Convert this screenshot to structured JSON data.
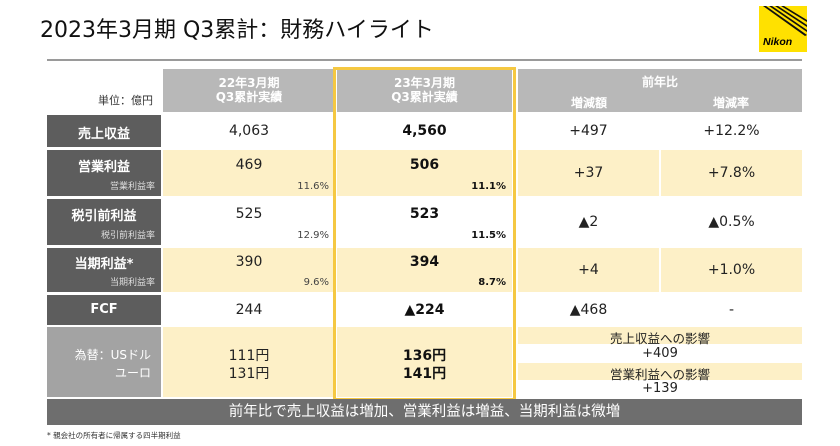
{
  "title": "2023年3月期 Q3累計：財務ハイライト",
  "logo": {
    "text": "Nikon",
    "color": "#ffe100"
  },
  "header": {
    "unit_label": "単位：億円",
    "prev_year": "22年3月期",
    "prev_sub": "Q3累計実績",
    "cur_year": "23年3月期",
    "cur_sub": "Q3累計実績",
    "yoy": "前年比",
    "diff": "増減額",
    "rate": "増減率"
  },
  "rows": [
    {
      "label": "売上収益",
      "prev": "4,063",
      "cur": "4,560",
      "diff": "+497",
      "rate": "+12.2%"
    },
    {
      "label": "営業利益",
      "sub": "営業利益率",
      "prev": "469",
      "prev_pct": "11.6%",
      "cur": "506",
      "cur_pct": "11.1%",
      "diff": "+37",
      "rate": "+7.8%"
    },
    {
      "label": "税引前利益",
      "sub": "税引前利益率",
      "prev": "525",
      "prev_pct": "12.9%",
      "cur": "523",
      "cur_pct": "11.5%",
      "diff": "▲2",
      "rate": "▲0.5%"
    },
    {
      "label": "当期利益*",
      "sub": "当期利益率",
      "prev": "390",
      "prev_pct": "9.6%",
      "cur": "394",
      "cur_pct": "8.7%",
      "diff": "+4",
      "rate": "+1.0%"
    },
    {
      "label": "FCF",
      "prev": "244",
      "cur": "▲224",
      "diff": "▲468",
      "rate": "-"
    }
  ],
  "fx": {
    "label1": "為替：USドル",
    "label2": "ユーロ",
    "prev_usd": "111円",
    "prev_eur": "131円",
    "cur_usd": "136円",
    "cur_eur": "141円",
    "impact_sales_label": "売上収益への影響",
    "impact_sales": "+409",
    "impact_op_label": "営業利益への影響",
    "impact_op": "+139"
  },
  "banner": "前年比で売上収益は増加、営業利益は増益、当期利益は微増",
  "footnote": "* 親会社の所有者に帰属する四半期利益",
  "colors": {
    "dark": "#5d5d5d",
    "header": "#b8b8b8",
    "highlight": "#f5c842",
    "yellow": "#fdf0c7"
  }
}
